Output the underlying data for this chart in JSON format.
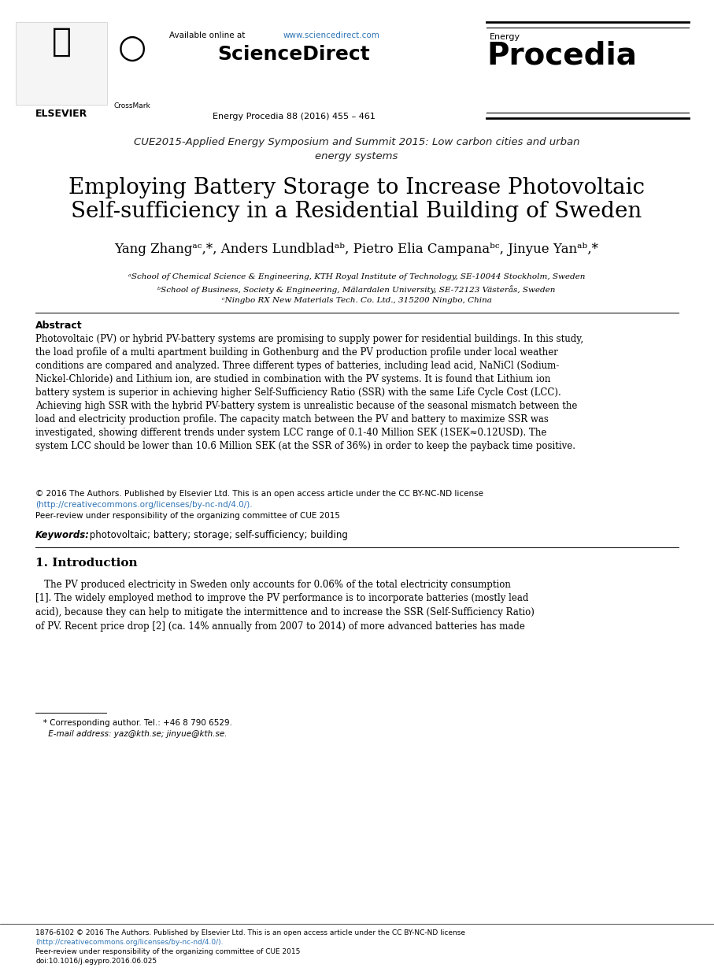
{
  "bg_color": "#ffffff",
  "url_color": "#2e74b5",
  "available_text": "Available online at ",
  "url_text": "www.sciencedirect.com",
  "sciencedirect_text": "ScienceDirect",
  "journal_small": "Energy",
  "journal_large": "Procedia",
  "journal_info": "Energy Procedia 88 (2016) 455 – 461",
  "conference_line1": "CUE2015-Applied Energy Symposium and Summit 2015: Low carbon cities and urban",
  "conference_line2": "energy systems",
  "paper_title_line1": "Employing Battery Storage to Increase Photovoltaic",
  "paper_title_line2": "Self-sufficiency in a Residential Building of Sweden",
  "authors_line": "Yang Zhangᵃᶜ,*, Anders Lundbladᵃᵇ, Pietro Elia Campanaᵇᶜ, Jinyue Yanᵃᵇ,*",
  "affil_a": "ᵃSchool of Chemical Science & Engineering, KTH Royal Institute of Technology, SE-10044 Stockholm, Sweden",
  "affil_b": "ᵇSchool of Business, Society & Engineering, Mälardalen University, SE-72123 Västerås, Sweden",
  "affil_c": "ᶜNingbo RX New Materials Tech. Co. Ltd., 315200 Ningbo, China",
  "abstract_title": "Abstract",
  "abstract_body": "Photovoltaic (PV) or hybrid PV-battery systems are promising to supply power for residential buildings. In this study,\nthe load profile of a multi apartment building in Gothenburg and the PV production profile under local weather\nconditions are compared and analyzed. Three different types of batteries, including lead acid, NaNiCl (Sodium-\nNickel-Chloride) and Lithium ion, are studied in combination with the PV systems. It is found that Lithium ion\nbattery system is superior in achieving higher Self-Sufficiency Ratio (SSR) with the same Life Cycle Cost (LCC).\nAchieving high SSR with the hybrid PV-battery system is unrealistic because of the seasonal mismatch between the\nload and electricity production profile. The capacity match between the PV and battery to maximize SSR was\ninvestigated, showing different trends under system LCC range of 0.1-40 Million SEK (1SEK≈0.12USD). The\nsystem LCC should be lower than 10.6 Million SEK (at the SSR of 36%) in order to keep the payback time positive.",
  "cc_line1": "© 2016 The Authors. Published by Elsevier Ltd. This is an open access article under the CC BY-NC-ND license",
  "cc_link": "(http://creativecommons.org/licenses/by-nc-nd/4.0/).",
  "cc_line2": "Peer-review under responsibility of the organizing committee of CUE 2015",
  "keywords_label": "Keywords:",
  "keywords_text": " photovoltaic; battery; storage; self-sufficiency; building",
  "section1_title": "1. Introduction",
  "intro_line1": "   The PV produced electricity in Sweden only accounts for 0.06% of the total electricity consumption",
  "intro_line2": "[1]. The widely employed method to improve the PV performance is to incorporate batteries (mostly lead",
  "intro_line3": "acid), because they can help to mitigate the intermittence and to increase the SSR (Self-Sufficiency Ratio)",
  "intro_line4": "of PV. Recent price drop [2] (ca. 14% annually from 2007 to 2014) of more advanced batteries has made",
  "footnote1": "   * Corresponding author. Tel.: +46 8 790 6529.",
  "footnote2": "     E-mail address: yaz@kth.se; jinyue@kth.se.",
  "footer_line1": "1876-6102 © 2016 The Authors. Published by Elsevier Ltd. This is an open access article under the CC BY-NC-ND license",
  "footer_link": "(http://creativecommons.org/licenses/by-nc-nd/4.0/).",
  "footer_line2": "Peer-review under responsibility of the organizing committee of CUE 2015",
  "footer_doi": "doi:10.1016/j.egypro.2016.06.025"
}
